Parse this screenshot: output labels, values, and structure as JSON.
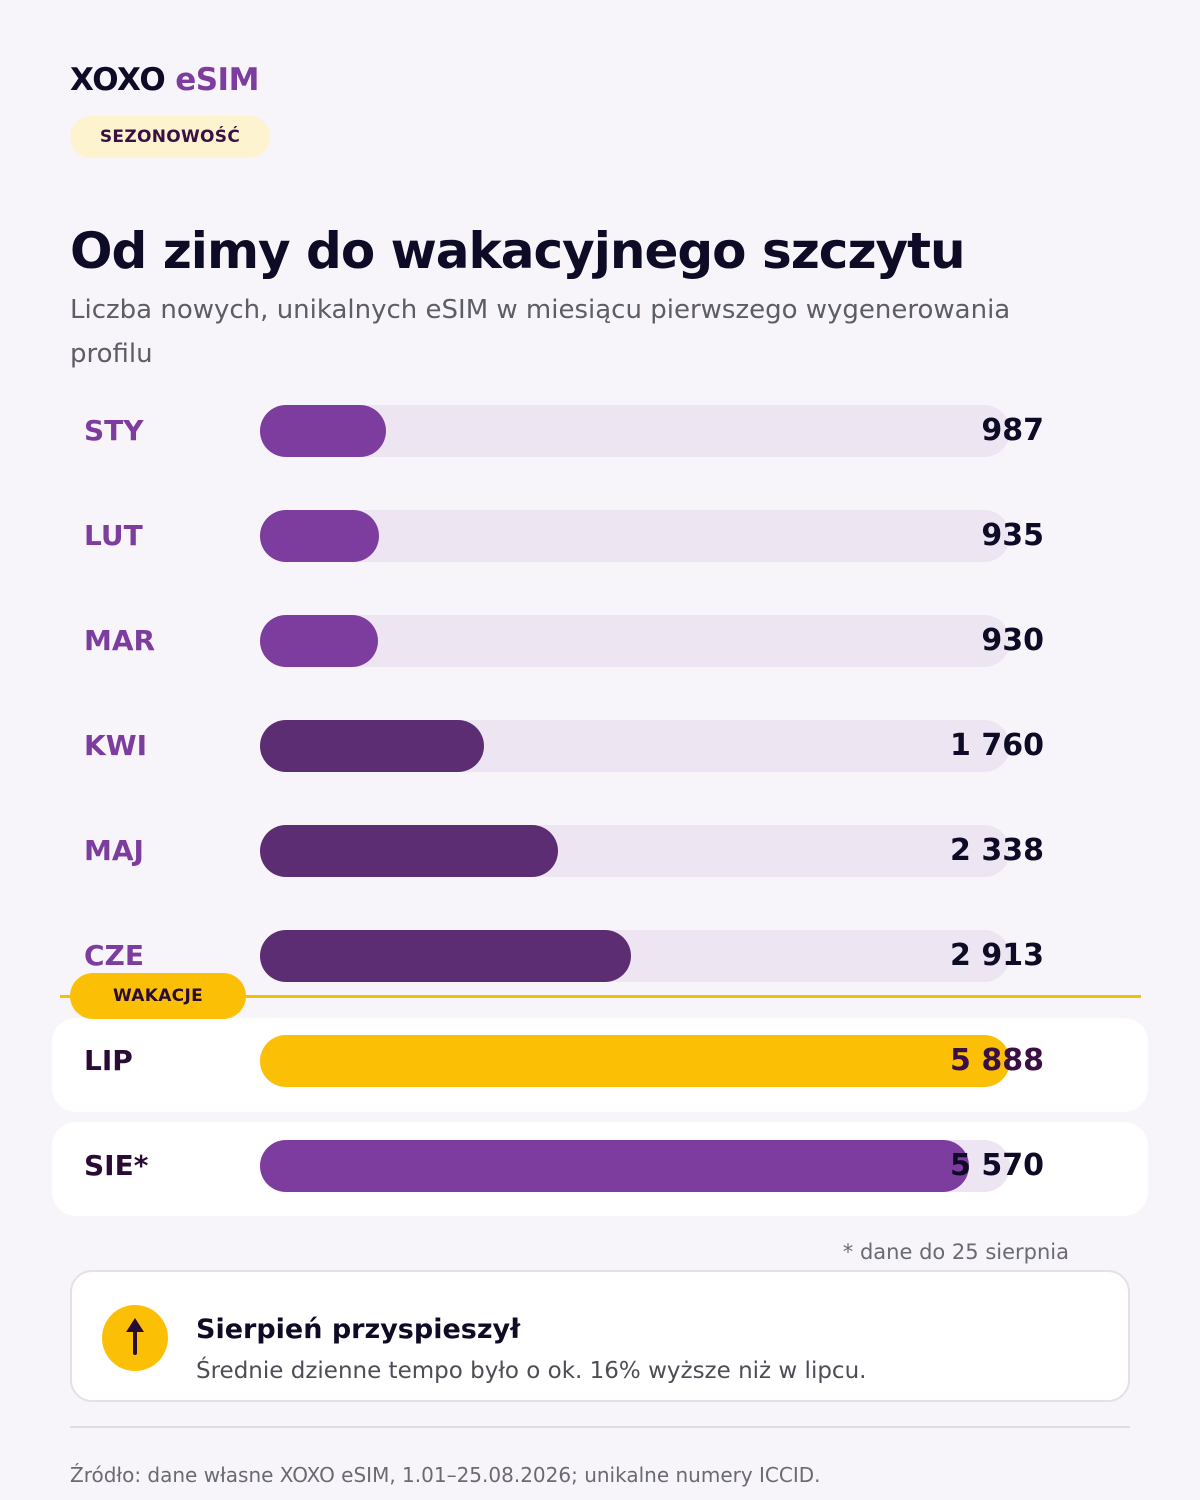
{
  "brand": {
    "name": "XOXO",
    "product": "eSIM"
  },
  "category_label": "SEZONOWOŚĆ",
  "chart_data": {
    "type": "bar",
    "orientation": "horizontal",
    "title": "Od zimy do wakacyjnego szczytu",
    "subtitle": "Liczba nowych, unikalnych eSIM w miesiącu pierwszego wygenerowania profilu",
    "categories": [
      "STY",
      "LUT",
      "MAR",
      "KWI",
      "MAJ",
      "CZE",
      "LIP",
      "SIE*"
    ],
    "values": [
      987,
      935,
      930,
      1760,
      2338,
      2913,
      5888,
      5570
    ],
    "value_labels": [
      "987",
      "935",
      "930",
      "1 760",
      "2 338",
      "2 913",
      "5 888",
      "5 570"
    ],
    "xlim": [
      0,
      5888
    ],
    "grid": false,
    "annotations": [
      {
        "label": "WAKACJE",
        "between": [
          "CZE",
          "LIP"
        ]
      }
    ],
    "highlight": "LIP",
    "colors": {
      "winter": "#7d3d9f",
      "spring": "#5c2d73",
      "peak": "#fbc006",
      "track": "#ede5f2",
      "vacation_line": "#f2c100"
    }
  },
  "vacation_label": "WAKACJE",
  "footnote": "* dane do 25 sierpnia",
  "insight": {
    "icon": "arrow-up-icon",
    "title": "Sierpień przyspieszył",
    "text": "Średnie dzienne tempo było o ok. 16% wyższe niż w lipcu."
  },
  "source": "Źródło: dane własne XOXO eSIM, 1.01–25.08.2026; unikalne numery ICCID."
}
